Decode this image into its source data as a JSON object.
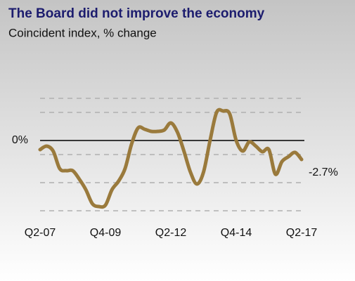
{
  "chart_data": {
    "type": "line",
    "title": "The Board did not improve the economy",
    "subtitle": "Coincident index, % change",
    "categories": [
      "Q2-07",
      null,
      null,
      null,
      null,
      null,
      null,
      null,
      null,
      null,
      "Q4-09",
      null,
      null,
      null,
      null,
      null,
      null,
      null,
      null,
      null,
      "Q2-12",
      null,
      null,
      null,
      null,
      null,
      null,
      null,
      null,
      null,
      "Q4-14",
      null,
      null,
      null,
      null,
      null,
      null,
      null,
      null,
      null,
      "Q2-17"
    ],
    "series": [
      {
        "color": "#9a7a3c",
        "values": [
          -1.3,
          -0.8,
          -1.5,
          -4,
          -4.3,
          -4.3,
          -5.5,
          -7,
          -9,
          -9.4,
          -9.2,
          -7,
          -5.8,
          -4,
          -0.5,
          1.8,
          1.6,
          1.3,
          1.3,
          1.5,
          2.5,
          1.2,
          -1.5,
          -4.5,
          -6.2,
          -4.5,
          0,
          4,
          4.2,
          3.8,
          0,
          -1.5,
          -0.2,
          -0.8,
          -1.6,
          -1.3,
          -4.8,
          -3,
          -2.3,
          -1.7,
          -2.7
        ],
        "value_labels": [
          null,
          null,
          null,
          null,
          null,
          null,
          null,
          null,
          null,
          null,
          null,
          null,
          null,
          null,
          null,
          null,
          null,
          null,
          null,
          null,
          null,
          null,
          null,
          null,
          null,
          null,
          null,
          null,
          null,
          null,
          null,
          null,
          null,
          null,
          null,
          null,
          null,
          null,
          null,
          null,
          "-2.7%"
        ]
      }
    ],
    "ylim": [
      -11,
      8
    ],
    "yticks": [
      {
        "value": 0,
        "label": "0%"
      }
    ],
    "ygrid": [
      6,
      4,
      -2,
      -6,
      -10
    ]
  }
}
